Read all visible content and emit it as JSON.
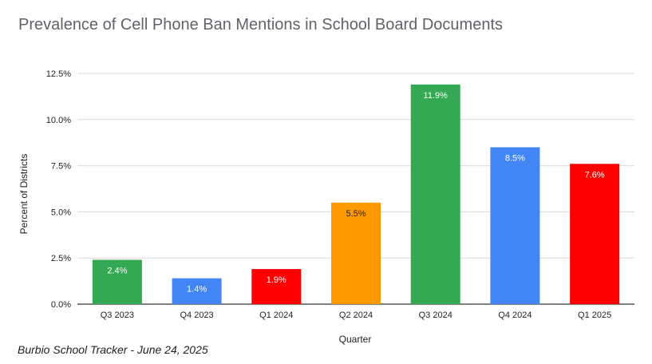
{
  "chart_data": {
    "type": "bar",
    "title": "Prevalence of Cell Phone Ban Mentions in School Board Documents",
    "xlabel": "Quarter",
    "ylabel": "Percent of Districts",
    "categories": [
      "Q3 2023",
      "Q4 2023",
      "Q1 2024",
      "Q2 2024",
      "Q3 2024",
      "Q4 2024",
      "Q1 2025"
    ],
    "values": [
      2.4,
      1.4,
      1.9,
      5.5,
      11.9,
      8.5,
      7.6
    ],
    "data_labels": [
      "2.4%",
      "1.4%",
      "1.9%",
      "5.5%",
      "11.9%",
      "8.5%",
      "7.6%"
    ],
    "bar_colors": [
      "#34a853",
      "#4285f4",
      "#ff0000",
      "#ff9900",
      "#34a853",
      "#4285f4",
      "#ff0000"
    ],
    "data_label_colors": [
      "#ffffff",
      "#ffffff",
      "#ffffff",
      "#222222",
      "#ffffff",
      "#ffffff",
      "#ffffff"
    ],
    "ylim": [
      0,
      12.5
    ],
    "yticks": [
      0,
      2.5,
      5,
      7.5,
      10,
      12.5
    ],
    "ytick_labels": [
      "0.0%",
      "2.5%",
      "5.0%",
      "7.5%",
      "10.0%",
      "12.5%"
    ],
    "grid": true,
    "legend": "none"
  },
  "footer": "Burbio School Tracker - June 24, 2025"
}
